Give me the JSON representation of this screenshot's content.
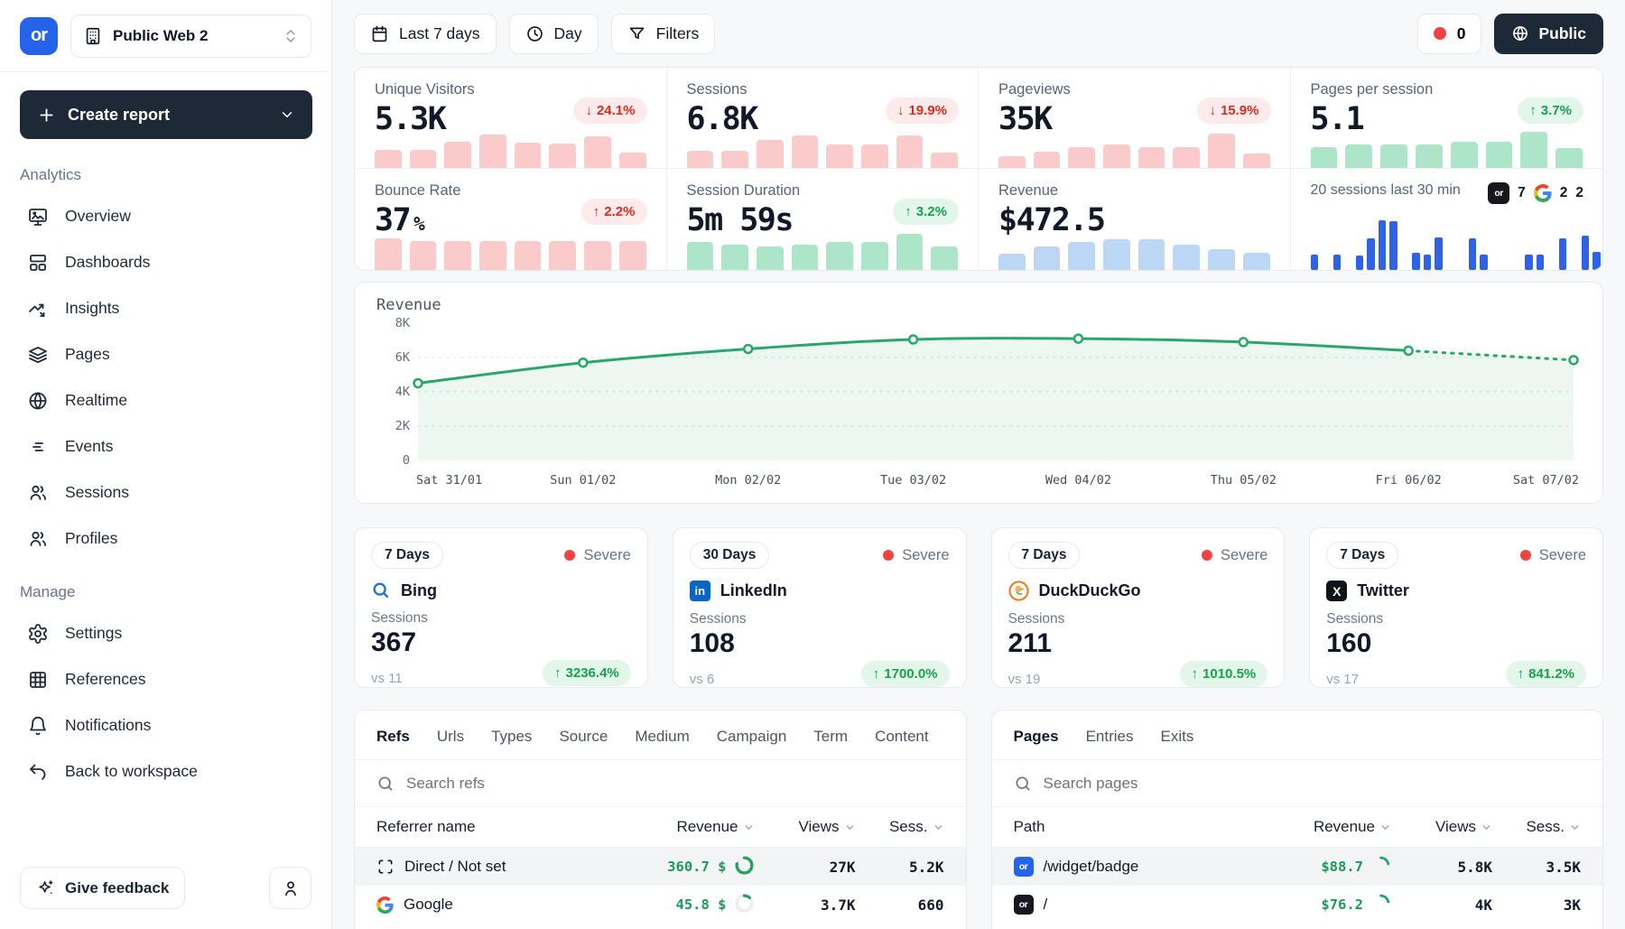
{
  "app": {
    "logo_text": "or",
    "accent_color": "#2563eb",
    "navy_color": "#1d2936"
  },
  "sidebar": {
    "workspace_label": "Public Web 2",
    "create_report_label": "Create report",
    "sections": [
      {
        "label": "Analytics",
        "items": [
          {
            "label": "Overview"
          },
          {
            "label": "Dashboards"
          },
          {
            "label": "Insights"
          },
          {
            "label": "Pages"
          },
          {
            "label": "Realtime"
          },
          {
            "label": "Events"
          },
          {
            "label": "Sessions"
          },
          {
            "label": "Profiles"
          }
        ]
      },
      {
        "label": "Manage",
        "items": [
          {
            "label": "Settings"
          },
          {
            "label": "References"
          },
          {
            "label": "Notifications"
          },
          {
            "label": "Back to workspace"
          }
        ]
      }
    ],
    "feedback_label": "Give feedback"
  },
  "topbar": {
    "date_range_label": "Last 7 days",
    "granularity_label": "Day",
    "filters_label": "Filters",
    "error_count": "0",
    "visibility_label": "Public"
  },
  "kpis": [
    {
      "label": "Unique Visitors",
      "value": "5.3K",
      "delta": "24.1%",
      "direction": "down",
      "trend": "bad",
      "bar_color": "#fbcaca",
      "bars": [
        45,
        45,
        65,
        82,
        62,
        60,
        78,
        38
      ]
    },
    {
      "label": "Sessions",
      "value": "6.8K",
      "delta": "19.9%",
      "direction": "down",
      "trend": "bad",
      "bar_color": "#fbcaca",
      "bars": [
        42,
        42,
        68,
        80,
        58,
        58,
        80,
        38
      ]
    },
    {
      "label": "Pageviews",
      "value": "35K",
      "delta": "15.9%",
      "direction": "down",
      "trend": "bad",
      "bar_color": "#fbcaca",
      "bars": [
        30,
        40,
        52,
        58,
        52,
        52,
        85,
        35
      ]
    },
    {
      "label": "Pages per session",
      "value": "5.1",
      "delta": "3.7%",
      "direction": "up",
      "trend": "good",
      "bar_color": "#ace5c8",
      "bars": [
        52,
        58,
        58,
        58,
        65,
        65,
        88,
        50
      ]
    },
    {
      "label": "Bounce Rate",
      "value": "37",
      "value_suffix": "%",
      "delta": "2.2%",
      "direction": "up",
      "trend": "bad",
      "bar_color": "#fbcaca",
      "bars": [
        78,
        72,
        72,
        72,
        72,
        72,
        72,
        72
      ]
    },
    {
      "label": "Session Duration",
      "value": "5m 59s",
      "delta": "3.2%",
      "direction": "up",
      "trend": "good",
      "bar_color": "#ace5c8",
      "bars": [
        68,
        62,
        58,
        62,
        68,
        68,
        88,
        58
      ]
    },
    {
      "label": "Revenue",
      "value": "$472.5",
      "bar_color": "#bcd6f6",
      "bars": [
        40,
        58,
        68,
        75,
        75,
        62,
        52,
        42
      ]
    }
  ],
  "realtime": {
    "label": "20 sessions last 30 min",
    "sources": [
      {
        "icon": "or-badge",
        "count": "7"
      },
      {
        "icon": "google",
        "count": "2"
      },
      {
        "icon": "none",
        "count": "2"
      }
    ],
    "bar_color": "#2e63e7",
    "bars": [
      30,
      0,
      30,
      0,
      28,
      60,
      95,
      93,
      0,
      32,
      30,
      62,
      0,
      0,
      60,
      30,
      0,
      0,
      0,
      30,
      30,
      0,
      60,
      0,
      65,
      35
    ]
  },
  "chart_data": {
    "type": "line",
    "title": "Revenue",
    "x": [
      "Sat 31/01",
      "Sun 01/02",
      "Mon 02/02",
      "Tue 03/02",
      "Wed 04/02",
      "Thu 05/02",
      "Fri 06/02",
      "Sat 07/02"
    ],
    "series": [
      {
        "name": "Revenue",
        "values": [
          4500,
          5700,
          6500,
          7050,
          7100,
          6900,
          6400,
          5850
        ]
      }
    ],
    "ylim": [
      0,
      8000
    ],
    "yticks": [
      "0",
      "2K",
      "4K",
      "6K",
      "8K"
    ],
    "ytick_values": [
      0,
      2000,
      4000,
      6000,
      8000
    ],
    "grid_values": [
      2000,
      4000,
      6000
    ],
    "dashed_from_index": 6,
    "line_color": "#2aa66c",
    "grid": "dashed",
    "legend": "none"
  },
  "alerts": [
    {
      "period": "7 Days",
      "severity": "Severe",
      "source": "Bing",
      "metric": "Sessions",
      "value": "367",
      "compare": "vs 11",
      "delta": "3236.4%"
    },
    {
      "period": "30 Days",
      "severity": "Severe",
      "source": "LinkedIn",
      "metric": "Sessions",
      "value": "108",
      "compare": "vs 6",
      "delta": "1700.0%"
    },
    {
      "period": "7 Days",
      "severity": "Severe",
      "source": "DuckDuckGo",
      "metric": "Sessions",
      "value": "211",
      "compare": "vs 19",
      "delta": "1010.5%"
    },
    {
      "period": "7 Days",
      "severity": "Severe",
      "source": "Twitter",
      "metric": "Sessions",
      "value": "160",
      "compare": "vs 17",
      "delta": "841.2%"
    }
  ],
  "refs_table": {
    "tabs": [
      "Refs",
      "Urls",
      "Types",
      "Source",
      "Medium",
      "Campaign",
      "Term",
      "Content"
    ],
    "active_tab": "Refs",
    "search_placeholder": "Search refs",
    "columns": [
      "Referrer name",
      "Revenue",
      "Views",
      "Sess."
    ],
    "rows": [
      {
        "name": "Direct / Not set",
        "revenue": "360.7 $",
        "views": "27K",
        "sessions": "5.2K",
        "ring": 0.78
      },
      {
        "name": "Google",
        "revenue": "45.8 $",
        "views": "3.7K",
        "sessions": "660",
        "ring": 0.12
      }
    ]
  },
  "pages_table": {
    "tabs": [
      "Pages",
      "Entries",
      "Exits"
    ],
    "active_tab": "Pages",
    "search_placeholder": "Search pages",
    "columns": [
      "Path",
      "Revenue",
      "Views",
      "Sess."
    ],
    "rows": [
      {
        "path": "/widget/badge",
        "revenue": "$88.7",
        "views": "5.8K",
        "sessions": "3.5K",
        "ring": 0.22
      },
      {
        "path": "/",
        "revenue": "$76.2",
        "views": "4K",
        "sessions": "3K",
        "ring": 0.22
      }
    ]
  }
}
